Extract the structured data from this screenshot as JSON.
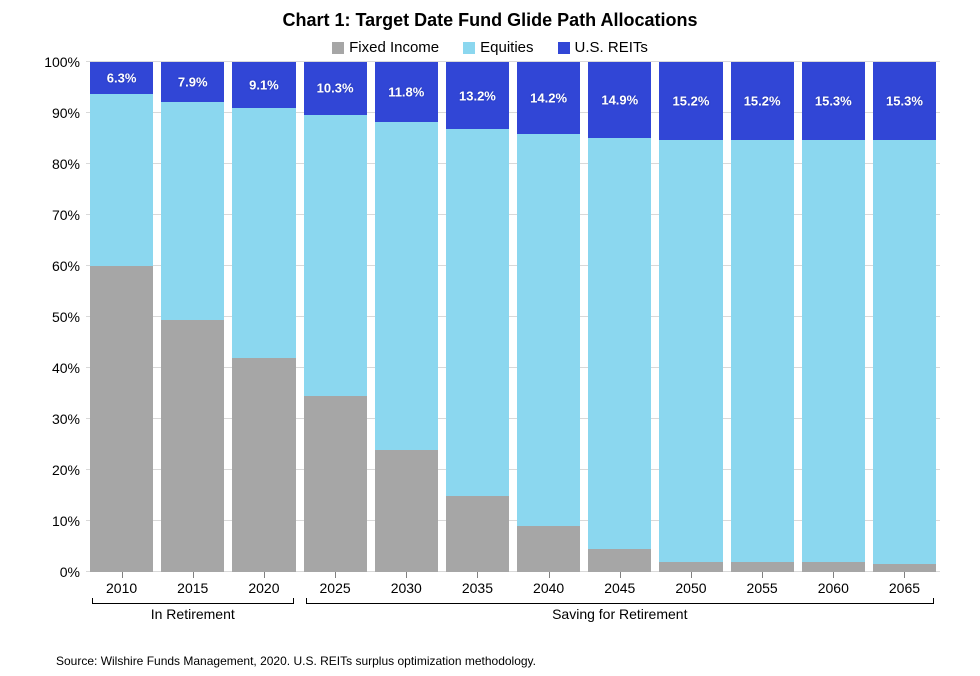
{
  "chart": {
    "type": "stacked-bar-100",
    "title": "Chart 1: Target Date Fund Glide Path Allocations",
    "title_fontsize": 18,
    "background_color": "#ffffff",
    "grid_color": "#d9d9d9",
    "y": {
      "min": 0,
      "max": 100,
      "step": 10,
      "suffix": "%",
      "label_fontsize": 14
    },
    "series": [
      {
        "key": "fixed_income",
        "label": "Fixed Income",
        "color": "#a6a6a6"
      },
      {
        "key": "equities",
        "label": "Equities",
        "color": "#8bd7ef"
      },
      {
        "key": "us_reits",
        "label": "U.S. REITs",
        "color": "#3146d6"
      }
    ],
    "data_label_series": "us_reits",
    "data_label_color": "#ffffff",
    "data_label_fontsize": 13,
    "categories": [
      "2010",
      "2015",
      "2020",
      "2025",
      "2030",
      "2035",
      "2040",
      "2045",
      "2050",
      "2055",
      "2060",
      "2065"
    ],
    "values": {
      "fixed_income": [
        60.0,
        49.5,
        42.0,
        34.5,
        24.0,
        15.0,
        9.0,
        4.5,
        2.0,
        2.0,
        2.0,
        1.5
      ],
      "equities": [
        33.7,
        42.6,
        48.9,
        55.2,
        64.2,
        71.8,
        76.8,
        80.6,
        82.8,
        82.8,
        82.7,
        83.2
      ],
      "us_reits": [
        6.3,
        7.9,
        9.1,
        10.3,
        11.8,
        13.2,
        14.2,
        14.9,
        15.2,
        15.2,
        15.3,
        15.3
      ]
    },
    "data_labels": [
      "6.3%",
      "7.9%",
      "9.1%",
      "10.3%",
      "11.8%",
      "13.2%",
      "14.2%",
      "14.9%",
      "15.2%",
      "15.2%",
      "15.3%",
      "15.3%"
    ],
    "group_axis": [
      {
        "label": "In Retirement",
        "from": 0,
        "to": 2
      },
      {
        "label": "Saving for Retirement",
        "from": 3,
        "to": 11
      }
    ],
    "source": "Source: Wilshire Funds Management, 2020. U.S. REITs surplus optimization methodology."
  }
}
